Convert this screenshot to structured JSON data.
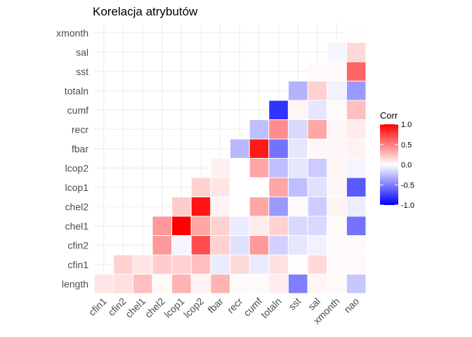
{
  "chart_data": {
    "type": "heatmap",
    "title": "Korelacja atrybutów",
    "xlabel": "",
    "ylabel": "",
    "x_categories": [
      "cfin1",
      "cfin2",
      "chel1",
      "chel2",
      "lcop1",
      "lcop2",
      "fbar",
      "recr",
      "cumf",
      "totaln",
      "sst",
      "sal",
      "xmonth",
      "nao"
    ],
    "y_categories": [
      "length",
      "cfin1",
      "cfin2",
      "chel1",
      "chel2",
      "lcop1",
      "lcop2",
      "fbar",
      "recr",
      "cumf",
      "totaln",
      "sst",
      "sal",
      "xmonth"
    ],
    "grid": true,
    "legend": {
      "title": "Corr",
      "position": "right",
      "ticks": [
        1.0,
        0.5,
        0.0,
        -0.5,
        -1.0
      ],
      "tick_labels": [
        "1.0",
        "0.5",
        "0.0",
        "-0.5",
        "-1.0"
      ],
      "range": [
        -1,
        1
      ],
      "colors": {
        "low": "#0000ff",
        "mid": "#ffffff",
        "high": "#ff0000"
      }
    },
    "matrix": [
      {
        "row": "length",
        "values": [
          0.1,
          0.12,
          0.25,
          0.02,
          0.3,
          0.05,
          0.3,
          0.02,
          0.02,
          0.08,
          -0.5,
          0.04,
          0.02,
          -0.22
        ]
      },
      {
        "row": "cfin1",
        "values": [
          null,
          0.18,
          0.1,
          0.2,
          0.18,
          0.25,
          -0.08,
          0.15,
          -0.08,
          0.12,
          0.01,
          0.15,
          0.02,
          0.02
        ]
      },
      {
        "row": "cfin2",
        "values": [
          null,
          null,
          null,
          0.4,
          -0.04,
          0.7,
          0.18,
          -0.12,
          0.4,
          -0.18,
          -0.1,
          -0.05,
          0.02,
          0.02
        ]
      },
      {
        "row": "chel1",
        "values": [
          null,
          null,
          null,
          0.4,
          1.0,
          0.35,
          0.18,
          -0.08,
          0.08,
          0.18,
          -0.15,
          -0.15,
          0.02,
          -0.55
        ]
      },
      {
        "row": "chel2",
        "values": [
          null,
          null,
          null,
          null,
          0.2,
          0.92,
          0.05,
          0.0,
          0.35,
          -0.4,
          0.02,
          -0.2,
          0.05,
          -0.07
        ]
      },
      {
        "row": "lcop1",
        "values": [
          null,
          null,
          null,
          null,
          null,
          0.18,
          0.1,
          0.0,
          0.0,
          0.35,
          -0.25,
          -0.12,
          0.04,
          -0.65
        ]
      },
      {
        "row": "lcop2",
        "values": [
          null,
          null,
          null,
          null,
          null,
          null,
          0.06,
          0.0,
          0.35,
          -0.25,
          -0.1,
          -0.2,
          0.04,
          -0.04
        ]
      },
      {
        "row": "fbar",
        "values": [
          null,
          null,
          null,
          null,
          null,
          null,
          null,
          -0.28,
          0.9,
          -0.55,
          -0.1,
          0.03,
          0.03,
          0.05
        ]
      },
      {
        "row": "recr",
        "values": [
          null,
          null,
          null,
          null,
          null,
          null,
          null,
          null,
          -0.25,
          0.45,
          -0.15,
          0.35,
          0.03,
          0.08
        ]
      },
      {
        "row": "cumf",
        "values": [
          null,
          null,
          null,
          null,
          null,
          null,
          null,
          null,
          null,
          -0.8,
          0.04,
          -0.1,
          0.02,
          0.25
        ]
      },
      {
        "row": "totaln",
        "values": [
          null,
          null,
          null,
          null,
          null,
          null,
          null,
          null,
          null,
          null,
          -0.3,
          0.18,
          -0.05,
          -0.4
        ]
      },
      {
        "row": "sst",
        "values": [
          null,
          null,
          null,
          null,
          null,
          null,
          null,
          null,
          null,
          null,
          null,
          0.02,
          0.02,
          0.6
        ]
      },
      {
        "row": "sal",
        "values": [
          null,
          null,
          null,
          null,
          null,
          null,
          null,
          null,
          null,
          null,
          null,
          null,
          -0.04,
          0.15
        ]
      },
      {
        "row": "xmonth",
        "values": [
          null,
          null,
          null,
          null,
          null,
          null,
          null,
          null,
          null,
          null,
          null,
          null,
          null,
          0.01
        ]
      }
    ]
  }
}
